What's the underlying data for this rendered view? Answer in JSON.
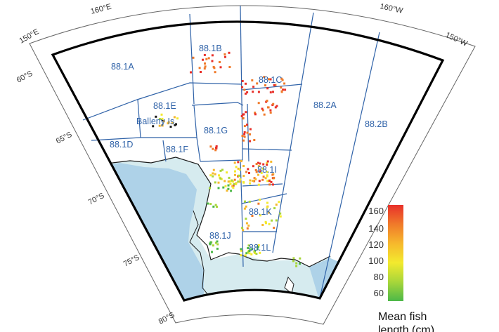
{
  "longitude_labels": [
    "150°E",
    "160°E",
    "160°W",
    "150°W"
  ],
  "latitude_labels": [
    "60°S",
    "65°S",
    "70°S",
    "75°S",
    "80°S"
  ],
  "areas": [
    "88.1A",
    "88.1B",
    "88.1C",
    "88.1E",
    "88.1G",
    "88.1D",
    "88.1F",
    "88.1I",
    "88.1K",
    "88.1J",
    "88.1L",
    "88.2A",
    "88.2B"
  ],
  "place_label": "Balleny Is",
  "legend": {
    "title_line1": "Mean fish",
    "title_line2": "length (cm)",
    "ticks": [
      "160",
      "140",
      "120",
      "100",
      "80",
      "60"
    ],
    "gradient_colors": [
      "#e8302a",
      "#f07a2a",
      "#f6b82c",
      "#f3ea2e",
      "#a8d63a",
      "#4cb848"
    ]
  },
  "colors": {
    "ocean_shelf": "#d6ebef",
    "ice_shelf": "#aed2e8",
    "grid_lines": "#2f62a8",
    "border": "#000000"
  }
}
